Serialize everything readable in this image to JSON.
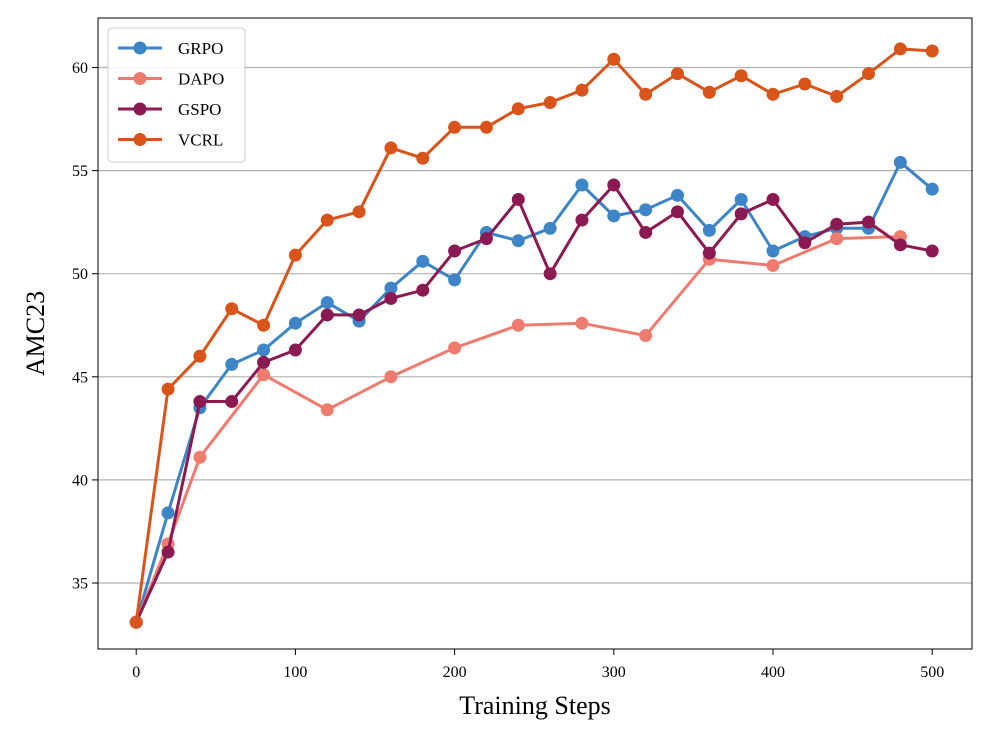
{
  "chart_data": {
    "type": "line",
    "title": "",
    "xlabel": "Training Steps",
    "ylabel": "AMC23",
    "xlim": [
      -24,
      525
    ],
    "ylim": [
      31.8,
      62.4
    ],
    "xticks": [
      0,
      100,
      200,
      300,
      400,
      500
    ],
    "yticks": [
      35,
      40,
      45,
      50,
      55,
      60
    ],
    "grid": "horizontal",
    "legend_position": "top-left",
    "series": [
      {
        "name": "GRPO",
        "color": "#3d85c6",
        "x": [
          0,
          20,
          40,
          60,
          80,
          100,
          120,
          140,
          160,
          180,
          200,
          220,
          240,
          260,
          280,
          300,
          320,
          340,
          360,
          380,
          400,
          420,
          440,
          460,
          480,
          500
        ],
        "values": [
          33.1,
          38.4,
          43.5,
          45.6,
          46.3,
          47.6,
          48.6,
          47.7,
          49.3,
          50.6,
          49.7,
          52.0,
          51.6,
          52.2,
          54.3,
          52.8,
          53.1,
          53.8,
          52.1,
          53.6,
          51.1,
          51.8,
          52.2,
          52.2,
          55.4,
          54.1
        ]
      },
      {
        "name": "DAPO",
        "color": "#ef7b6f",
        "x": [
          0,
          20,
          40,
          80,
          120,
          160,
          200,
          240,
          280,
          320,
          360,
          400,
          440,
          480
        ],
        "values": [
          33.1,
          36.9,
          41.1,
          45.1,
          43.4,
          45.0,
          46.4,
          47.5,
          47.6,
          47.0,
          50.7,
          50.4,
          51.7,
          51.8
        ]
      },
      {
        "name": "GSPO",
        "color": "#8b1a52",
        "x": [
          0,
          20,
          40,
          60,
          80,
          100,
          120,
          140,
          160,
          180,
          200,
          220,
          240,
          260,
          280,
          300,
          320,
          340,
          360,
          380,
          400,
          420,
          440,
          460,
          480,
          500
        ],
        "values": [
          33.1,
          36.5,
          43.8,
          43.8,
          45.7,
          46.3,
          48.0,
          48.0,
          48.8,
          49.2,
          51.1,
          51.7,
          53.6,
          50.0,
          52.6,
          54.3,
          52.0,
          53.0,
          51.0,
          52.9,
          53.6,
          51.5,
          52.4,
          52.5,
          51.4,
          51.1
        ]
      },
      {
        "name": "VCRL",
        "color": "#d9541a",
        "x": [
          0,
          20,
          40,
          60,
          80,
          100,
          120,
          140,
          160,
          180,
          200,
          220,
          240,
          260,
          280,
          300,
          320,
          340,
          360,
          380,
          400,
          420,
          440,
          460,
          480,
          500
        ],
        "values": [
          33.1,
          44.4,
          46.0,
          48.3,
          47.5,
          50.9,
          52.6,
          53.0,
          56.1,
          55.6,
          57.1,
          57.1,
          58.0,
          58.3,
          58.9,
          60.4,
          58.7,
          59.7,
          58.8,
          59.6,
          58.7,
          59.2,
          58.6,
          59.7,
          60.9,
          60.8
        ]
      }
    ]
  }
}
